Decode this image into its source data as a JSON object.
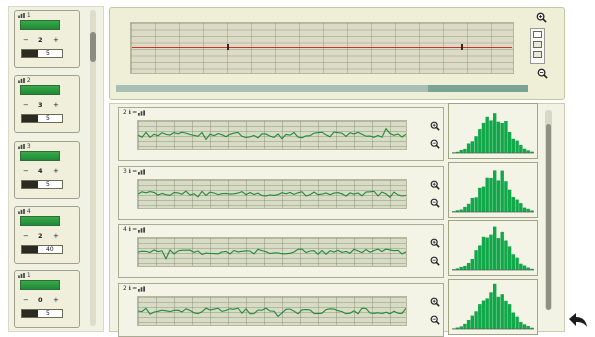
{
  "left_channels": [
    {
      "header": "1",
      "value": "2",
      "bar_text": "",
      "field_text": "5"
    },
    {
      "header": "2",
      "value": "3",
      "bar_text": "",
      "field_text": "5"
    },
    {
      "header": "3",
      "value": "4",
      "bar_text": "",
      "field_text": "5"
    },
    {
      "header": "4",
      "value": "2",
      "bar_text": "",
      "field_text": "40"
    },
    {
      "header": "1",
      "value": "0",
      "bar_text": "",
      "field_text": "5"
    }
  ],
  "overview": {
    "top_left": "",
    "top_center": "",
    "top_right": ""
  },
  "waveforms": [
    {
      "label": "2"
    },
    {
      "label": "3"
    },
    {
      "label": "4"
    },
    {
      "label": "2"
    }
  ],
  "icons": {
    "zoom_in": "magnifier-plus-icon",
    "zoom_out": "magnifier-minus-icon",
    "back": "back-arrow-icon",
    "channel": "bar-chart-icon"
  },
  "colors": {
    "panel": "#efefd8",
    "grid": "#d9dcc4",
    "trace": "#1f8a3a",
    "marker_line": "#d0302a",
    "histogram": "#11a84a"
  }
}
